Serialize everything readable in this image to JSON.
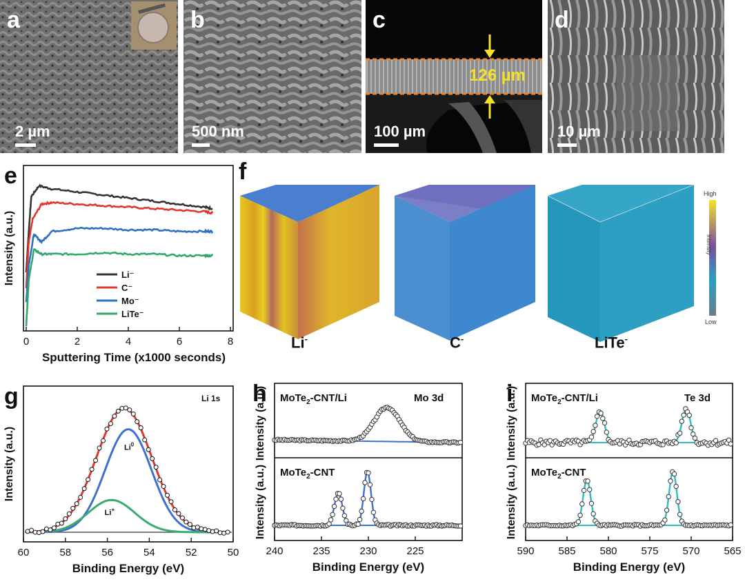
{
  "panels": {
    "a": {
      "letter": "a",
      "scalebar": "2 µm"
    },
    "b": {
      "letter": "b",
      "scalebar": "500 nm"
    },
    "c": {
      "letter": "c",
      "scalebar": "100 µm",
      "thickness": "126 µm"
    },
    "d": {
      "letter": "d",
      "scalebar": "10 µm"
    },
    "e": {
      "letter": "e"
    },
    "f": {
      "letter": "f",
      "cube_labels": [
        "Li",
        "C",
        "LiTe"
      ],
      "cube_superscript": "-",
      "colorbar": {
        "high": "High",
        "low": "Low",
        "label": "Intensity"
      }
    },
    "g": {
      "letter": "g"
    },
    "h": {
      "letter": "h"
    },
    "i": {
      "letter": "i"
    }
  },
  "colors": {
    "li_black": "#333333",
    "c_red": "#e0362c",
    "mo_blue": "#2f6fc0",
    "lite_green": "#2fa86a",
    "fit_blue": "#3f6fd0",
    "fit_cyan": "#2bbcc0",
    "li0_green": "#3aaa6e",
    "yellow": "#f5e12a"
  },
  "chart_data": [
    {
      "panel": "e",
      "type": "line",
      "xlabel": "Sputtering Time (x1000 seconds)",
      "ylabel": "Intensity (a.u.)",
      "xlim": [
        0,
        8
      ],
      "xticks": [
        0,
        2,
        4,
        6,
        8
      ],
      "legend_position": "lower-left",
      "series": [
        {
          "name": "Li⁻",
          "color": "#333333",
          "x": [
            0,
            0.1,
            0.2,
            0.5,
            1,
            2,
            3,
            4,
            5,
            6,
            7,
            7.3
          ],
          "y": [
            0.35,
            0.62,
            0.85,
            0.92,
            0.9,
            0.88,
            0.86,
            0.84,
            0.82,
            0.8,
            0.78,
            0.77
          ]
        },
        {
          "name": "C⁻",
          "color": "#e0362c",
          "x": [
            0,
            0.1,
            0.25,
            0.6,
            1,
            2,
            3,
            4,
            5,
            6,
            7,
            7.3
          ],
          "y": [
            0.25,
            0.55,
            0.7,
            0.8,
            0.81,
            0.8,
            0.79,
            0.78,
            0.77,
            0.76,
            0.75,
            0.74
          ]
        },
        {
          "name": "Mo⁻",
          "color": "#2f6fc0",
          "x": [
            0,
            0.1,
            0.3,
            0.6,
            1,
            2,
            3,
            4,
            5,
            6,
            7,
            7.3
          ],
          "y": [
            0.15,
            0.4,
            0.6,
            0.55,
            0.62,
            0.64,
            0.64,
            0.63,
            0.63,
            0.62,
            0.62,
            0.62
          ]
        },
        {
          "name": "LiTe⁻",
          "color": "#2fa86a",
          "x": [
            0,
            0.1,
            0.3,
            0.6,
            1,
            2,
            3,
            4,
            5,
            6,
            7,
            7.3
          ],
          "y": [
            0.0,
            0.3,
            0.5,
            0.47,
            0.47,
            0.47,
            0.48,
            0.47,
            0.47,
            0.46,
            0.46,
            0.46
          ]
        }
      ]
    },
    {
      "panel": "g",
      "type": "line",
      "title": "Li 1s",
      "xlabel": "Binding Energy (eV)",
      "ylabel": "Intensity (a.u.)",
      "xlim": [
        60,
        50
      ],
      "xticks": [
        60,
        58,
        56,
        54,
        52,
        50
      ],
      "series": [
        {
          "name": "Li⁰",
          "color": "#3f6fd0",
          "center": 55.0,
          "fwhm": 2.6,
          "height": 0.83
        },
        {
          "name": "Li⁺",
          "color": "#3aaa6e",
          "center": 55.8,
          "fwhm": 2.6,
          "height": 0.26
        },
        {
          "name": "",
          "color": "#e0362c",
          "center": 55.2,
          "fwhm": 3.1,
          "height": 1.0
        },
        {
          "name": "",
          "color": "#000000",
          "kind": "data-points",
          "center": 55.2,
          "fwhm": 3.1,
          "height": 1.0
        }
      ]
    },
    {
      "panel": "h",
      "type": "line",
      "xlabel": "Binding Energy (eV)",
      "ylabel": "Intensity (a.u.)",
      "xlim": [
        240,
        220
      ],
      "xticks": [
        240,
        235,
        230,
        225
      ],
      "subplots": [
        {
          "label": "MoTe₂-CNT/Li",
          "title": "Mo 3d",
          "peaks": [
            {
              "center": 228.0,
              "fwhm": 3.2,
              "height": 0.75
            }
          ]
        },
        {
          "label": "MoTe₂-CNT",
          "peaks": [
            {
              "center": 233.2,
              "fwhm": 1.0,
              "height": 0.6
            },
            {
              "center": 230.1,
              "fwhm": 0.9,
              "height": 1.0
            }
          ]
        }
      ]
    },
    {
      "panel": "i",
      "type": "line",
      "xlabel": "Binding Energy (eV)",
      "ylabel": "Intensity (a.u.)",
      "xlim": [
        590,
        565
      ],
      "xticks": [
        590,
        585,
        580,
        575,
        570,
        565
      ],
      "subplots": [
        {
          "label": "MoTe₂-CNT/Li",
          "title": "Te 3d",
          "peaks": [
            {
              "center": 581.0,
              "fwhm": 1.2,
              "height": 0.7
            },
            {
              "center": 570.6,
              "fwhm": 1.2,
              "height": 0.75
            }
          ]
        },
        {
          "label": "MoTe₂-CNT",
          "peaks": [
            {
              "center": 582.6,
              "fwhm": 1.1,
              "height": 0.85
            },
            {
              "center": 572.2,
              "fwhm": 1.1,
              "height": 1.0
            }
          ]
        }
      ]
    }
  ]
}
